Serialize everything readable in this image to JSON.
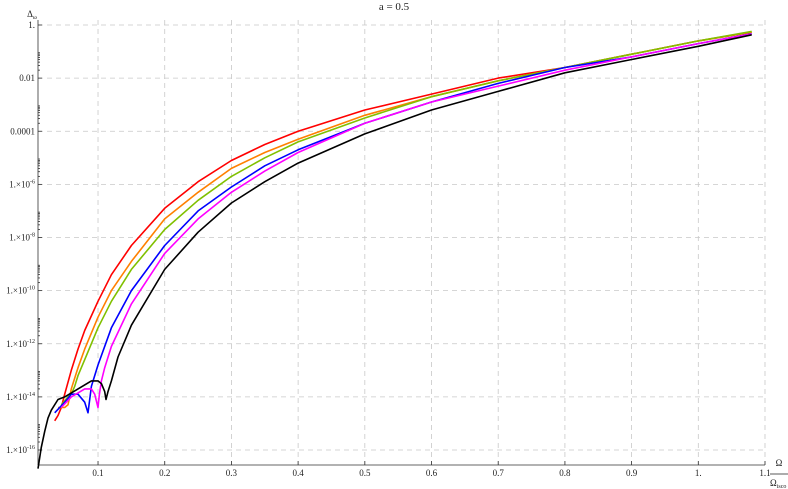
{
  "chart_data": {
    "type": "line",
    "title": "a = 0.5",
    "ylabel": "Δ",
    "ylabel_sub": "ω",
    "xlabel_num": "Ω",
    "xlabel_den": "Ω",
    "xlabel_den_sub": "isco",
    "y_scale": "log",
    "xlim": [
      0.01,
      1.1
    ],
    "ylim_log10": [
      -17,
      0.2
    ],
    "grid": true,
    "x_ticks": [
      {
        "v": 0.1,
        "label": "0.1"
      },
      {
        "v": 0.2,
        "label": "0.2"
      },
      {
        "v": 0.3,
        "label": "0.3"
      },
      {
        "v": 0.4,
        "label": "0.4"
      },
      {
        "v": 0.5,
        "label": "0.5"
      },
      {
        "v": 0.6,
        "label": "0.6"
      },
      {
        "v": 0.7,
        "label": "0.7"
      },
      {
        "v": 0.8,
        "label": "0.8"
      },
      {
        "v": 0.9,
        "label": "0.9"
      },
      {
        "v": 1.0,
        "label": "1."
      },
      {
        "v": 1.1,
        "label": "1.1"
      }
    ],
    "y_ticks": [
      {
        "exp": 0,
        "label": "1."
      },
      {
        "exp": -2,
        "label": "0.01"
      },
      {
        "exp": -4,
        "label": "0.0001"
      },
      {
        "exp": -6,
        "label": "1.×10",
        "sup": "-6"
      },
      {
        "exp": -8,
        "label": "1.×10",
        "sup": "-8"
      },
      {
        "exp": -10,
        "label": "1.×10",
        "sup": "-10"
      },
      {
        "exp": -12,
        "label": "1.×10",
        "sup": "-12"
      },
      {
        "exp": -14,
        "label": "1.×10",
        "sup": "-14"
      },
      {
        "exp": -16,
        "label": "1.×10",
        "sup": "-16"
      }
    ],
    "series": [
      {
        "color": "#ff0000",
        "x": [
          0.035,
          0.04,
          0.045,
          0.05,
          0.06,
          0.07,
          0.08,
          0.1,
          0.12,
          0.15,
          0.2,
          0.25,
          0.3,
          0.35,
          0.4,
          0.5,
          0.6,
          0.7,
          0.8,
          0.9,
          1.0,
          1.08
        ],
        "y": [
          -14.9,
          -14.7,
          -14.4,
          -13.9,
          -13.0,
          -12.2,
          -11.5,
          -10.4,
          -9.4,
          -8.3,
          -6.9,
          -5.9,
          -5.1,
          -4.5,
          -4.0,
          -3.2,
          -2.6,
          -2.0,
          -1.6,
          -1.1,
          -0.6,
          -0.27
        ]
      },
      {
        "color": "#ff8000",
        "x": [
          0.04,
          0.05,
          0.055,
          0.06,
          0.07,
          0.08,
          0.1,
          0.12,
          0.15,
          0.2,
          0.25,
          0.3,
          0.35,
          0.4,
          0.5,
          0.6,
          0.7,
          0.8,
          0.9,
          1.0,
          1.08
        ],
        "y": [
          -14.4,
          -14.4,
          -14.3,
          -13.7,
          -12.9,
          -12.2,
          -11.0,
          -10.0,
          -8.9,
          -7.3,
          -6.3,
          -5.4,
          -4.8,
          -4.3,
          -3.4,
          -2.7,
          -2.1,
          -1.6,
          -1.1,
          -0.6,
          -0.26
        ]
      },
      {
        "color": "#80c000",
        "x": [
          0.045,
          0.055,
          0.06,
          0.065,
          0.07,
          0.08,
          0.1,
          0.12,
          0.15,
          0.2,
          0.25,
          0.3,
          0.35,
          0.4,
          0.5,
          0.6,
          0.7,
          0.8,
          0.9,
          1.0,
          1.08
        ],
        "y": [
          -14.3,
          -14.0,
          -13.9,
          -13.6,
          -13.2,
          -12.6,
          -11.4,
          -10.4,
          -9.2,
          -7.7,
          -6.6,
          -5.7,
          -5.0,
          -4.4,
          -3.5,
          -2.7,
          -2.1,
          -1.6,
          -1.1,
          -0.6,
          -0.24
        ]
      },
      {
        "color": "#0000ff",
        "x": [
          0.035,
          0.05,
          0.06,
          0.07,
          0.08,
          0.085,
          0.09,
          0.1,
          0.12,
          0.15,
          0.2,
          0.25,
          0.3,
          0.35,
          0.4,
          0.5,
          0.6,
          0.7,
          0.8,
          0.9,
          1.0,
          1.08
        ],
        "y": [
          -14.6,
          -14.2,
          -13.9,
          -13.9,
          -14.2,
          -14.6,
          -13.6,
          -12.8,
          -11.4,
          -10.0,
          -8.3,
          -7.0,
          -6.1,
          -5.3,
          -4.7,
          -3.7,
          -2.9,
          -2.2,
          -1.6,
          -1.2,
          -0.7,
          -0.33
        ]
      },
      {
        "color": "#ff00ff",
        "x": [
          0.045,
          0.06,
          0.08,
          0.09,
          0.095,
          0.1,
          0.102,
          0.105,
          0.11,
          0.12,
          0.15,
          0.2,
          0.25,
          0.3,
          0.35,
          0.4,
          0.5,
          0.6,
          0.7,
          0.8,
          0.9,
          1.0,
          1.08
        ],
        "y": [
          -14.4,
          -14.0,
          -13.7,
          -13.7,
          -13.9,
          -14.4,
          -13.9,
          -13.4,
          -12.9,
          -12.1,
          -10.5,
          -8.6,
          -7.3,
          -6.3,
          -5.5,
          -4.8,
          -3.7,
          -2.9,
          -2.3,
          -1.7,
          -1.2,
          -0.7,
          -0.34
        ]
      },
      {
        "color": "#000000",
        "x": [
          0.01,
          0.015,
          0.02,
          0.025,
          0.03,
          0.04,
          0.05,
          0.07,
          0.09,
          0.1,
          0.105,
          0.11,
          0.112,
          0.115,
          0.12,
          0.13,
          0.15,
          0.2,
          0.25,
          0.3,
          0.35,
          0.4,
          0.5,
          0.6,
          0.7,
          0.8,
          0.9,
          1.0,
          1.08
        ],
        "y": [
          -16.7,
          -15.9,
          -15.3,
          -14.8,
          -14.5,
          -14.1,
          -14.0,
          -13.7,
          -13.4,
          -13.4,
          -13.5,
          -13.8,
          -14.1,
          -13.8,
          -13.4,
          -12.5,
          -11.3,
          -9.2,
          -7.8,
          -6.7,
          -5.9,
          -5.2,
          -4.1,
          -3.2,
          -2.5,
          -1.8,
          -1.3,
          -0.8,
          -0.37
        ]
      }
    ]
  }
}
